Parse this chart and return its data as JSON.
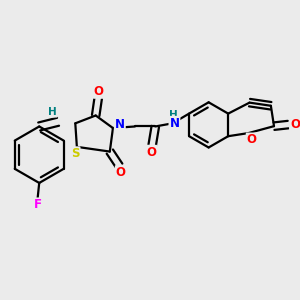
{
  "bg_color": "#ebebeb",
  "bond_color": "#000000",
  "bond_width": 1.6,
  "atom_colors": {
    "O": "#ff0000",
    "N": "#0000ff",
    "S": "#cccc00",
    "F": "#ff00ff",
    "H": "#008080",
    "C": "#000000"
  },
  "font_size": 8.5,
  "fig_bg": "#ebebeb"
}
